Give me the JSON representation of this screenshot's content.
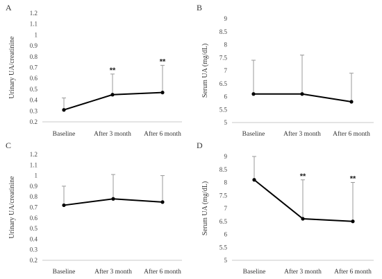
{
  "chart_data": [
    {
      "panel": "A",
      "type": "line",
      "ylabel": "Urinary UA/creatinine",
      "ylim": [
        0.2,
        1.2
      ],
      "ystep": 0.1,
      "yticks": [
        "0.2",
        "0.3",
        "0.4",
        "0.5",
        "0.6",
        "0.7",
        "0.8",
        "0.9",
        "1",
        "1.1",
        "1.2"
      ],
      "categories": [
        "Baseline",
        "After 3 month",
        "After 6 month"
      ],
      "values": [
        0.31,
        0.45,
        0.47
      ],
      "error_upper": [
        0.42,
        0.64,
        0.72
      ],
      "significance": [
        "",
        "**",
        "**"
      ]
    },
    {
      "panel": "B",
      "type": "line",
      "ylabel": "Serum UA (mg/dL)",
      "ylim": [
        5,
        9
      ],
      "ystep": 0.5,
      "yticks": [
        "5",
        "5.5",
        "6",
        "6.5",
        "7",
        "7.5",
        "8",
        "8.5",
        "9"
      ],
      "categories": [
        "Baseline",
        "After 3 month",
        "After 6 month"
      ],
      "values": [
        6.1,
        6.1,
        5.8
      ],
      "error_upper": [
        7.4,
        7.6,
        6.9
      ],
      "significance": [
        "",
        "",
        ""
      ]
    },
    {
      "panel": "C",
      "type": "line",
      "ylabel": "Urinary UA/creatinine",
      "ylim": [
        0.2,
        1.2
      ],
      "ystep": 0.1,
      "yticks": [
        "0.2",
        "0.3",
        "0.4",
        "0.5",
        "0.6",
        "0.7",
        "0.8",
        "0.9",
        "1",
        "1.1",
        "1.2"
      ],
      "categories": [
        "Baseline",
        "After 3 month",
        "After 6 month"
      ],
      "values": [
        0.72,
        0.78,
        0.75
      ],
      "error_upper": [
        0.9,
        1.01,
        1.0
      ],
      "significance": [
        "",
        "",
        ""
      ]
    },
    {
      "panel": "D",
      "type": "line",
      "ylabel": "Serum UA (mg/dL)",
      "ylim": [
        5,
        9
      ],
      "ystep": 0.5,
      "yticks": [
        "5",
        "5.5",
        "6",
        "6.5",
        "7",
        "7.5",
        "8",
        "8.5",
        "9"
      ],
      "categories": [
        "Baseline",
        "After 3 month",
        "After 6 month"
      ],
      "values": [
        8.1,
        6.6,
        6.5
      ],
      "error_upper": [
        9.0,
        8.1,
        8.0
      ],
      "significance": [
        "",
        "**",
        "**"
      ]
    }
  ],
  "colors": {
    "line": "#000000",
    "error_bar": "#999999",
    "baseline_axis": "#c8c8c8"
  }
}
